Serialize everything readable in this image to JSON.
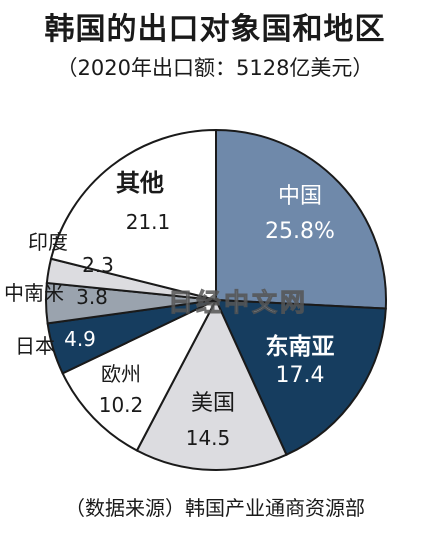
{
  "header": {
    "title": "韩国的出口对象国和地区",
    "subtitle": "（2020年出口额：5128亿美元）"
  },
  "footer": {
    "source": "（数据来源）韩国产业通商资源部"
  },
  "watermark": "日经中文网",
  "colors": {
    "china": "#6f89aa",
    "southeast_asia": "#163d5f",
    "usa": "#dcdce0",
    "europe": "#ffffff",
    "japan": "#163d5f",
    "latin_america": "#9aa3ae",
    "india": "#dcdce0",
    "other": "#ffffff",
    "outline": "#1a1a1a"
  },
  "chart_data": {
    "type": "pie",
    "start_angle_deg": 0,
    "direction": "clockwise",
    "unit": "%",
    "slices": [
      {
        "label": "中国",
        "value": 25.8,
        "value_text": "25.8%",
        "color_key": "china",
        "text_color": "#ffffff"
      },
      {
        "label": "东南亚",
        "value": 17.4,
        "value_text": "17.4",
        "color_key": "southeast_asia",
        "text_color": "#ffffff"
      },
      {
        "label": "美国",
        "value": 14.5,
        "value_text": "14.5",
        "color_key": "usa",
        "text_color": "#1a1a1a"
      },
      {
        "label": "欧州",
        "value": 10.2,
        "value_text": "10.2",
        "color_key": "europe",
        "text_color": "#1a1a1a"
      },
      {
        "label": "日本",
        "value": 4.9,
        "value_text": "4.9",
        "color_key": "japan",
        "text_color": "#ffffff"
      },
      {
        "label": "中南米",
        "value": 3.8,
        "value_text": "3.8",
        "color_key": "latin_america",
        "text_color": "#1a1a1a"
      },
      {
        "label": "印度",
        "value": 2.3,
        "value_text": "2.3",
        "color_key": "india",
        "text_color": "#1a1a1a"
      },
      {
        "label": "其他",
        "value": 21.1,
        "value_text": "21.1",
        "color_key": "other",
        "text_color": "#1a1a1a"
      }
    ]
  }
}
